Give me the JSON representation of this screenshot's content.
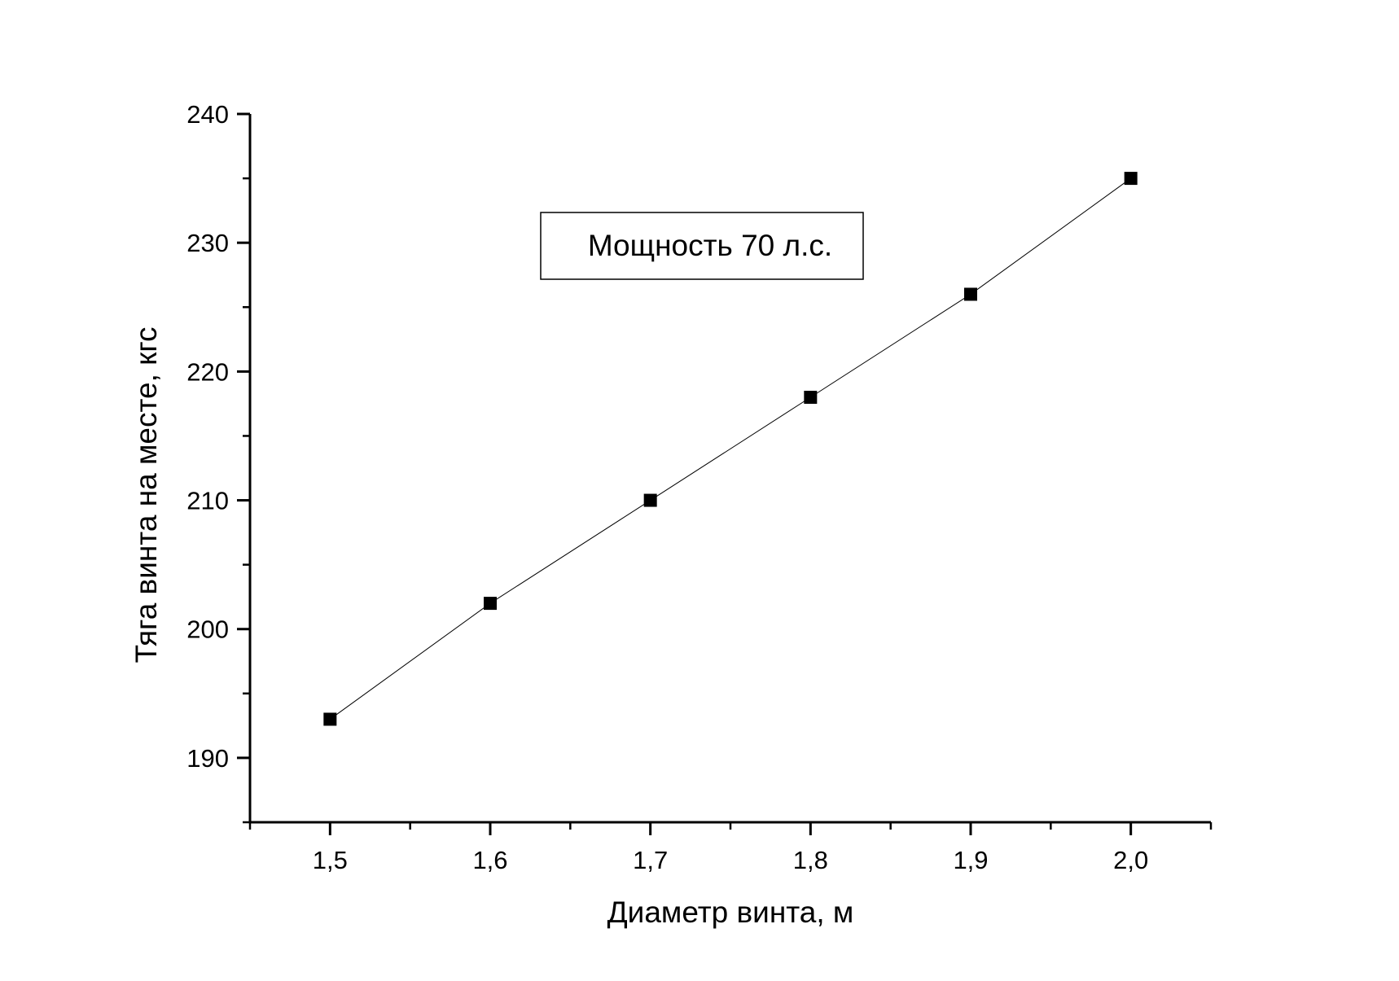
{
  "chart_data": {
    "type": "line",
    "title": "",
    "xlabel": "Диаметр винта, м",
    "ylabel": "Тяга винта на месте, кгс",
    "xlim": [
      1.45,
      2.05
    ],
    "ylim": [
      185,
      240
    ],
    "x_ticks": [
      1.5,
      1.6,
      1.7,
      1.8,
      1.9,
      2.0
    ],
    "x_tick_labels": [
      "1,5",
      "1,6",
      "1,7",
      "1,8",
      "1,9",
      "2,0"
    ],
    "y_ticks": [
      190,
      200,
      210,
      220,
      230,
      240
    ],
    "y_tick_labels": [
      "190",
      "200",
      "210",
      "220",
      "230",
      "240"
    ],
    "grid": false,
    "annotation": "Мощность 70 л.с.",
    "marker": "square",
    "series": [
      {
        "x": [
          1.5,
          1.6,
          1.7,
          1.8,
          1.9,
          2.0
        ],
        "values": [
          193,
          202,
          210,
          218,
          226,
          235
        ],
        "color": "#000000"
      }
    ]
  }
}
